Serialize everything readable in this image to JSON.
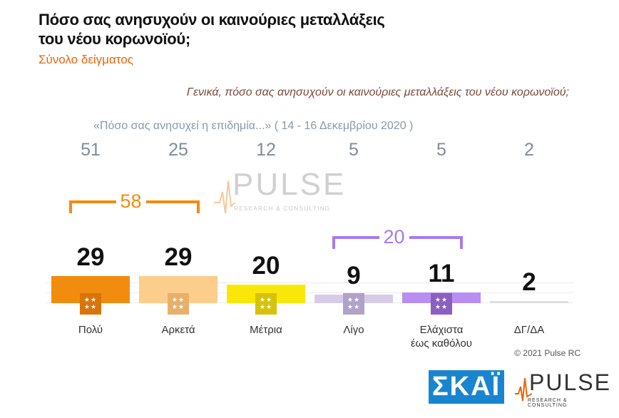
{
  "title_line1": "Πόσο σας ανησυχούν οι καινούριες μεταλλάξεις",
  "title_line2": "του νέου κορωνοϊού;",
  "subtitle": "Σύνολο δείγματος",
  "question": "Γενικά, πόσο σας ανησυχούν οι καινούριες μεταλλάξεις του νέου κορωνοϊού;",
  "previous_survey_label": "«Πόσο σας ανησυχεί η επιδημία...» ( 14 - 16 Δεκεμβρίου  2020 )",
  "copyright": "© 2021 Pulse RC",
  "watermark": {
    "name": "PULSE",
    "tagline": "RESEARCH & CONSULTING"
  },
  "logos": {
    "skai": "ΣΚΑΪ",
    "pulse": "PULSE",
    "pulse_tagline": "RESEARCH & CONSULTING"
  },
  "colors": {
    "accent_orange": "#e8650c",
    "group_purple": "#a57bf0"
  },
  "chart_data": {
    "type": "bar",
    "categories": [
      "Πολύ",
      "Αρκετά",
      "Μέτρια",
      "Λίγο",
      "Ελάχιστα έως καθόλου",
      "ΔΓ/ΔΑ"
    ],
    "category_lines": [
      [
        "Πολύ"
      ],
      [
        "Αρκετά"
      ],
      [
        "Μέτρια"
      ],
      [
        "Λίγο"
      ],
      [
        "Ελάχιστα",
        "έως καθόλου"
      ],
      [
        "ΔΓ/ΔΑ"
      ]
    ],
    "values": [
      29,
      29,
      20,
      9,
      11,
      2
    ],
    "previous_values": [
      51,
      25,
      12,
      5,
      5,
      2
    ],
    "bar_colors": [
      "#f28c0f",
      "#fdcd8c",
      "#fae70a",
      "#d6cce8",
      "#b88ef2",
      "#dedede"
    ],
    "star_colors": [
      "#d9740a",
      "#e6b06a",
      "#d6c20a",
      "#b0a2c8",
      "#8a5fc0",
      ""
    ],
    "groups": [
      {
        "label": "58",
        "from": 0,
        "to": 1,
        "color": "#f28c0f"
      },
      {
        "label": "20",
        "from": 3,
        "to": 4,
        "color": "#a57bf0"
      }
    ],
    "ylim": [
      0,
      100
    ]
  }
}
